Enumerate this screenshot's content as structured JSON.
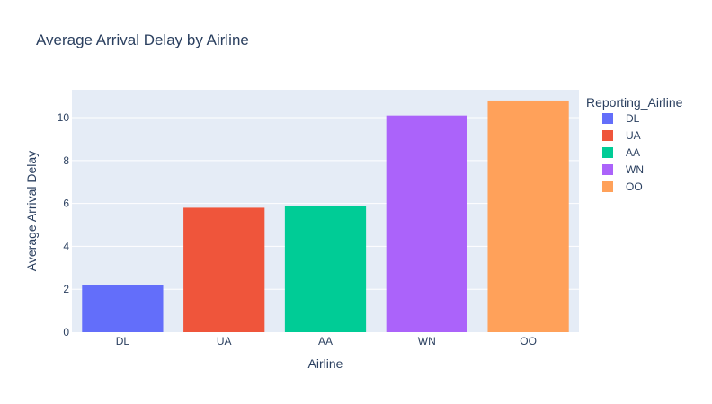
{
  "chart_data": {
    "type": "bar",
    "title": "Average Arrival Delay by Airline",
    "xlabel": "Airline",
    "ylabel": "Average Arrival Delay",
    "categories": [
      "DL",
      "UA",
      "AA",
      "WN",
      "OO"
    ],
    "values": [
      2.2,
      5.8,
      5.9,
      10.1,
      10.8
    ],
    "ylim": [
      0,
      11.3
    ],
    "yticks": [
      0,
      2,
      4,
      6,
      8,
      10
    ],
    "grid": true,
    "legend": {
      "title": "Reporting_Airline",
      "position": "right",
      "entries": [
        "DL",
        "UA",
        "AA",
        "WN",
        "OO"
      ]
    },
    "colors": [
      "#636efa",
      "#EF553B",
      "#00cc96",
      "#ab63fa",
      "#FFA15A"
    ],
    "plot_background": "#e5ecf6"
  }
}
